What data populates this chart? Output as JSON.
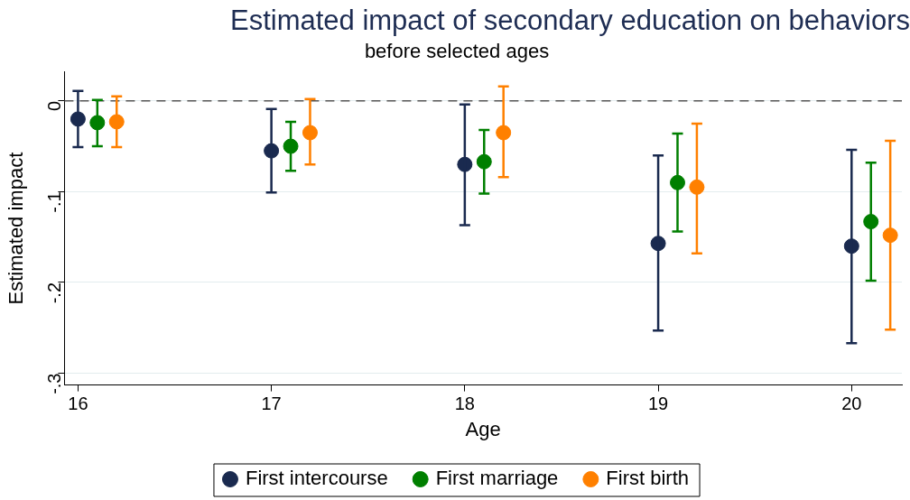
{
  "chart_data": {
    "type": "scatter",
    "title": "Estimated impact of secondary education on behaviors",
    "subtitle": "before selected ages",
    "xlabel": "Age",
    "ylabel": "Estimated impact",
    "xlim": [
      15.93,
      20.26
    ],
    "xticks": [
      16,
      17,
      18,
      19,
      20
    ],
    "ylim": [
      -0.313,
      0.032
    ],
    "yticks": [
      {
        "value": 0,
        "label": "0"
      },
      {
        "value": -0.1,
        "label": "-.1"
      },
      {
        "value": -0.2,
        "label": "-.2"
      },
      {
        "value": -0.3,
        "label": "-.3"
      }
    ],
    "grid": "y",
    "legend": "bottom",
    "marker": "circle",
    "ref_lines": [
      {
        "axis": "y",
        "value": 0,
        "color": "#555555",
        "line_style": "dashed"
      }
    ],
    "series": [
      {
        "name": "First intercourse",
        "color": "#1a2a4f",
        "x": [
          16,
          17,
          18,
          19,
          20
        ],
        "values": [
          -0.02,
          -0.055,
          -0.07,
          -0.157,
          -0.16
        ],
        "errors": [
          [
            -0.051,
            0.011
          ],
          [
            -0.101,
            -0.009
          ],
          [
            -0.137,
            -0.004
          ],
          [
            -0.253,
            -0.06
          ],
          [
            -0.267,
            -0.054
          ]
        ]
      },
      {
        "name": "First marriage",
        "color": "#007f00",
        "x": [
          16.1,
          17.1,
          18.1,
          19.1,
          20.1
        ],
        "values": [
          -0.024,
          -0.05,
          -0.067,
          -0.09,
          -0.133
        ],
        "errors": [
          [
            -0.05,
            0.001
          ],
          [
            -0.077,
            -0.023
          ],
          [
            -0.102,
            -0.032
          ],
          [
            -0.144,
            -0.036
          ],
          [
            -0.198,
            -0.068
          ]
        ]
      },
      {
        "name": "First birth",
        "color": "#ff8000",
        "x": [
          16.2,
          17.2,
          18.2,
          19.2,
          20.2
        ],
        "values": [
          -0.023,
          -0.035,
          -0.035,
          -0.095,
          -0.148
        ],
        "errors": [
          [
            -0.051,
            0.005
          ],
          [
            -0.07,
            0.002
          ],
          [
            -0.084,
            0.016
          ],
          [
            -0.168,
            -0.025
          ],
          [
            -0.252,
            -0.044
          ]
        ]
      }
    ]
  }
}
